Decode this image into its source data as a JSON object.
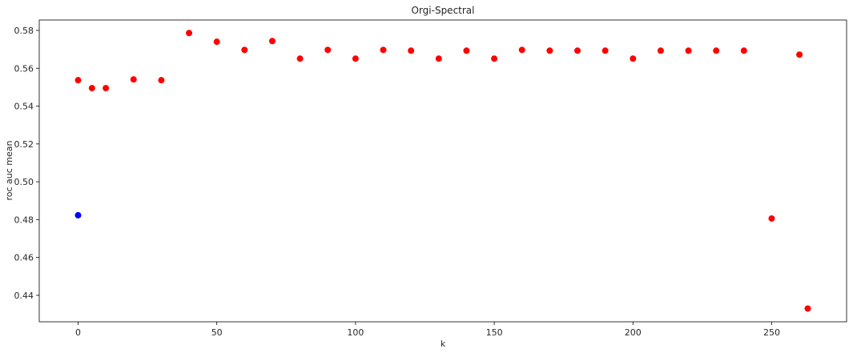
{
  "chart_data": {
    "type": "scatter",
    "title": "Orgi-Spectral",
    "xlabel": "k",
    "ylabel": "roc auc mean",
    "xlim": [
      -14,
      277
    ],
    "ylim": [
      0.426,
      0.5855
    ],
    "xticks": [
      0,
      50,
      100,
      150,
      200,
      250
    ],
    "yticks": [
      0.44,
      0.46,
      0.48,
      0.5,
      0.52,
      0.54,
      0.56,
      0.58
    ],
    "grid": false,
    "series": [
      {
        "color": "#ff0000",
        "points": [
          {
            "x": 0,
            "y": 0.5537
          },
          {
            "x": 5,
            "y": 0.5495
          },
          {
            "x": 10,
            "y": 0.5495
          },
          {
            "x": 20,
            "y": 0.5541
          },
          {
            "x": 30,
            "y": 0.5537
          },
          {
            "x": 40,
            "y": 0.5786
          },
          {
            "x": 50,
            "y": 0.574
          },
          {
            "x": 60,
            "y": 0.5697
          },
          {
            "x": 70,
            "y": 0.5744
          },
          {
            "x": 80,
            "y": 0.5651
          },
          {
            "x": 90,
            "y": 0.5697
          },
          {
            "x": 100,
            "y": 0.5651
          },
          {
            "x": 110,
            "y": 0.5697
          },
          {
            "x": 120,
            "y": 0.5693
          },
          {
            "x": 130,
            "y": 0.5651
          },
          {
            "x": 140,
            "y": 0.5693
          },
          {
            "x": 150,
            "y": 0.5651
          },
          {
            "x": 160,
            "y": 0.5697
          },
          {
            "x": 170,
            "y": 0.5693
          },
          {
            "x": 180,
            "y": 0.5693
          },
          {
            "x": 190,
            "y": 0.5693
          },
          {
            "x": 200,
            "y": 0.5651
          },
          {
            "x": 210,
            "y": 0.5693
          },
          {
            "x": 220,
            "y": 0.5693
          },
          {
            "x": 230,
            "y": 0.5693
          },
          {
            "x": 240,
            "y": 0.5693
          },
          {
            "x": 250,
            "y": 0.4806
          },
          {
            "x": 260,
            "y": 0.5672
          },
          {
            "x": 263,
            "y": 0.433
          }
        ]
      },
      {
        "color": "#0000ff",
        "points": [
          {
            "x": 0,
            "y": 0.4823
          }
        ]
      }
    ]
  }
}
